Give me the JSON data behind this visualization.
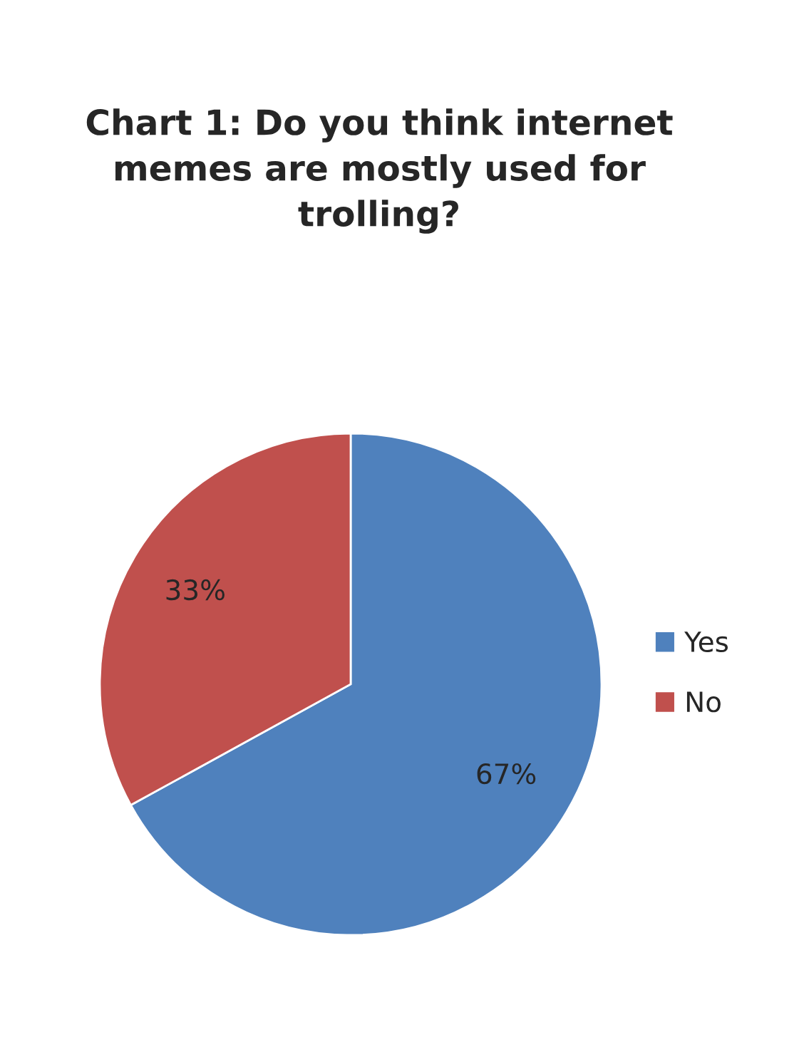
{
  "chart_data": {
    "type": "pie",
    "title": "Chart 1: Do you think internet\nmemes are mostly used for\ntrolling?",
    "categories": [
      "Yes",
      "No"
    ],
    "values": [
      67,
      33
    ],
    "value_labels": [
      "67%",
      "33%"
    ],
    "colors": [
      "#4f81bd",
      "#c0504d"
    ],
    "legend": "right"
  }
}
